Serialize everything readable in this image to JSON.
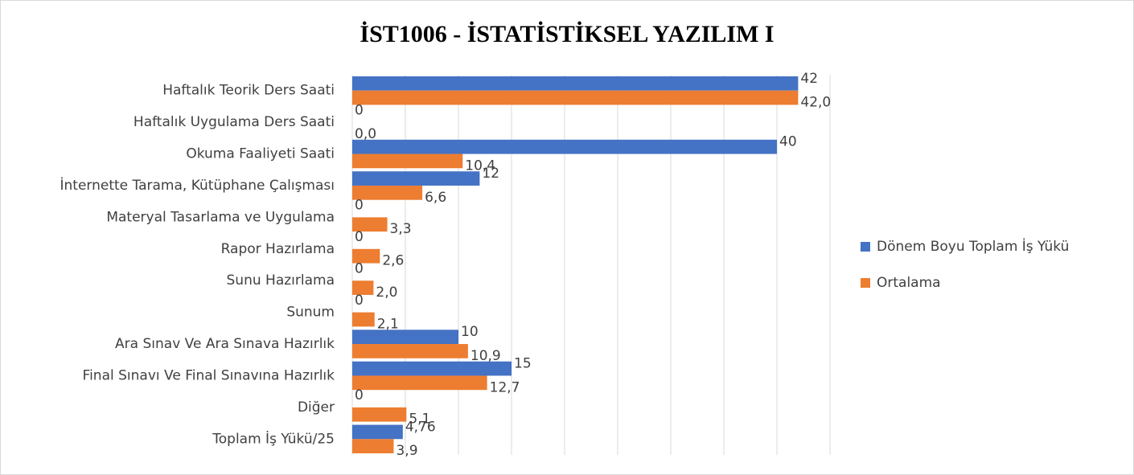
{
  "chart_data": {
    "type": "bar",
    "orientation": "horizontal",
    "title": "İST1006 - İSTATİSTİKSEL YAZILIM I",
    "categories": [
      "Haftalık Teorik Ders Saati",
      "Haftalık Uygulama Ders Saati",
      "Okuma Faaliyeti Saati",
      "İnternette Tarama, Kütüphane Çalışması",
      "Materyal Tasarlama ve Uygulama",
      "Rapor Hazırlama",
      "Sunu Hazırlama",
      "Sunum",
      "Ara Sınav Ve Ara Sınava Hazırlık",
      "Final Sınavı Ve Final Sınavına Hazırlık",
      "Diğer",
      "Toplam İş Yükü/25"
    ],
    "series": [
      {
        "name": "Dönem Boyu Toplam İş Yükü",
        "color": "#4472c4",
        "values": [
          42,
          0,
          40,
          12,
          0,
          0,
          0,
          0,
          10,
          15,
          0,
          4.76
        ],
        "value_labels": [
          "42",
          "0",
          "40",
          "12",
          "0",
          "0",
          "0",
          "0",
          "10",
          "15",
          "0",
          "4,76"
        ]
      },
      {
        "name": "Ortalama",
        "color": "#ed7d31",
        "values": [
          42.0,
          0.0,
          10.4,
          6.6,
          3.3,
          2.6,
          2.0,
          2.1,
          10.9,
          12.7,
          5.1,
          3.9
        ],
        "value_labels": [
          "42,0",
          "0,0",
          "10,4",
          "6,6",
          "3,3",
          "2,6",
          "2,0",
          "2,1",
          "10,9",
          "12,7",
          "5,1",
          "3,9"
        ]
      }
    ],
    "xlim": [
      0,
      45
    ],
    "xticks": [
      0,
      5,
      10,
      15,
      20,
      25,
      30,
      35,
      40,
      45
    ],
    "grid": true,
    "legend": "right"
  }
}
